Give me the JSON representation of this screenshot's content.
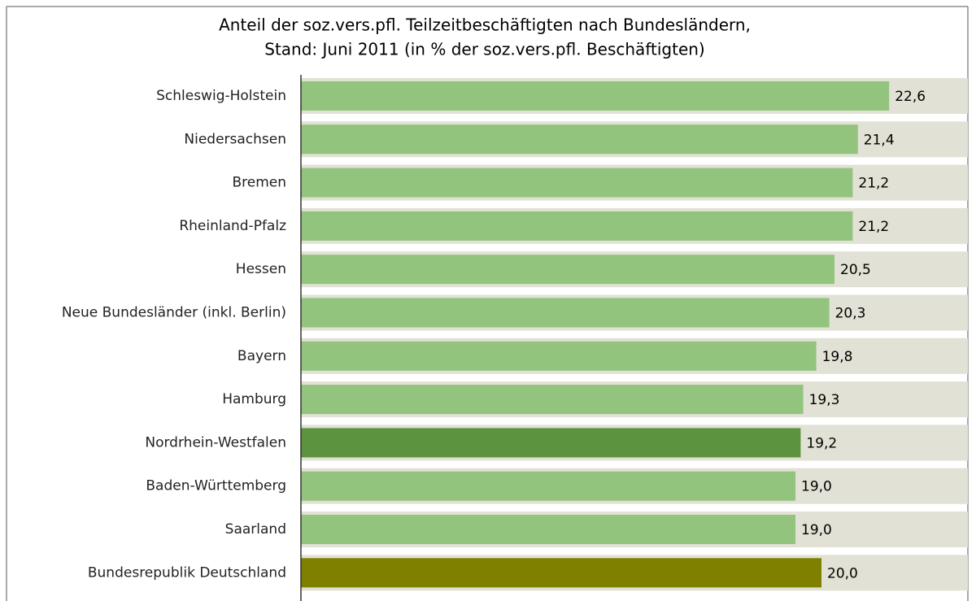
{
  "chart_data": {
    "type": "barh",
    "title": [
      "Anteil der soz.vers.pfl. Teilzeitbeschäftigten nach Bundesländern,",
      "Stand: Juni 2011 (in % der soz.vers.pfl. Beschäftigten)"
    ],
    "categories": [
      "Schleswig-Holstein",
      "Niedersachsen",
      "Bremen",
      "Rheinland-Pfalz",
      "Hessen",
      "Neue Bundesländer (inkl. Berlin)",
      "Bayern",
      "Hamburg",
      "Nordrhein-Westfalen",
      "Baden-Württemberg",
      "Saarland",
      "Bundesrepublik Deutschland"
    ],
    "values": [
      22.6,
      21.4,
      21.2,
      21.2,
      20.5,
      20.3,
      19.8,
      19.3,
      19.2,
      19.0,
      19.0,
      20.0
    ],
    "value_labels": [
      "22,6",
      "21,4",
      "21,2",
      "21,2",
      "20,5",
      "20,3",
      "19,8",
      "19,3",
      "19,2",
      "19,0",
      "19,0",
      "20,0"
    ],
    "colors": [
      "#93c47d",
      "#93c47d",
      "#93c47d",
      "#93c47d",
      "#93c47d",
      "#93c47d",
      "#93c47d",
      "#93c47d",
      "#5b933e",
      "#93c47d",
      "#93c47d",
      "#808000"
    ]
  }
}
